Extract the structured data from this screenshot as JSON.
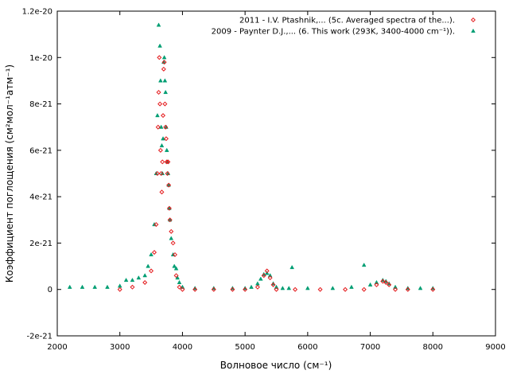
{
  "chart_data": {
    "type": "scatter",
    "title": "",
    "xlabel": "Волновое число (см⁻¹)",
    "ylabel": "Коэффициент поглощения (см²мол⁻¹атм⁻¹)",
    "xlim": [
      2000,
      9000
    ],
    "ylim": [
      -2e-21,
      1.2e-20
    ],
    "x_ticks": [
      2000,
      3000,
      4000,
      5000,
      6000,
      7000,
      8000,
      9000
    ],
    "x_tick_labels": [
      "2000",
      "3000",
      "4000",
      "5000",
      "6000",
      "7000",
      "8000",
      "9000"
    ],
    "y_ticks": [
      -2e-21,
      0,
      2e-21,
      4e-21,
      6e-21,
      8e-21,
      1e-20,
      1.2e-20
    ],
    "y_tick_labels": [
      "-2e-21",
      "0",
      "2e-21",
      "4e-21",
      "6e-21",
      "8e-21",
      "1e-20",
      "1.2e-20"
    ],
    "grid": false,
    "legend_position": "top-right",
    "colors": {
      "series1": "#e41a1c",
      "series2": "#009e73"
    },
    "series": [
      {
        "name": "2011 - I.V. Ptashnik,... (5c. Averaged spectra of the...).",
        "marker": "diamond",
        "x": [
          3000,
          3200,
          3400,
          3500,
          3550,
          3580,
          3600,
          3610,
          3620,
          3630,
          3640,
          3650,
          3660,
          3670,
          3680,
          3690,
          3700,
          3710,
          3720,
          3730,
          3740,
          3750,
          3760,
          3770,
          3780,
          3790,
          3800,
          3820,
          3850,
          3880,
          3900,
          3950,
          4000,
          4200,
          4500,
          4800,
          5000,
          5200,
          5300,
          5350,
          5400,
          5450,
          5500,
          5800,
          6200,
          6600,
          6900,
          7100,
          7200,
          7250,
          7300,
          7400,
          7600,
          8000
        ],
        "y": [
          0,
          1e-22,
          3e-22,
          8e-22,
          1.6e-21,
          2.8e-21,
          5e-21,
          7e-21,
          8.5e-21,
          1e-20,
          8e-21,
          6e-21,
          5e-21,
          4.2e-21,
          5.5e-21,
          7.5e-21,
          9.5e-21,
          9.8e-21,
          8e-21,
          7e-21,
          6.5e-21,
          5.5e-21,
          5e-21,
          5.5e-21,
          4.5e-21,
          3.5e-21,
          3e-21,
          2.5e-21,
          2e-21,
          1.5e-21,
          6e-22,
          1e-22,
          0,
          0,
          0,
          0,
          0,
          1e-22,
          6e-22,
          8e-22,
          5e-22,
          2e-22,
          0,
          0,
          0,
          0,
          0,
          2e-22,
          3.5e-22,
          3e-22,
          2e-22,
          0,
          0,
          0
        ]
      },
      {
        "name": "2009 - Paynter D.J.,... (6.  This work (293K, 3400-4000 cm⁻¹)).",
        "marker": "triangle",
        "x": [
          2200,
          2400,
          2600,
          2800,
          3000,
          3100,
          3200,
          3300,
          3400,
          3450,
          3500,
          3550,
          3580,
          3600,
          3620,
          3640,
          3650,
          3660,
          3670,
          3680,
          3690,
          3700,
          3710,
          3720,
          3730,
          3740,
          3750,
          3760,
          3770,
          3780,
          3790,
          3800,
          3820,
          3850,
          3870,
          3900,
          3920,
          3950,
          4000,
          4200,
          4500,
          4800,
          5000,
          5100,
          5200,
          5250,
          5300,
          5350,
          5400,
          5450,
          5500,
          5600,
          5700,
          5750,
          6000,
          6400,
          6700,
          6900,
          7000,
          7100,
          7200,
          7250,
          7300,
          7400,
          7600,
          7800,
          8000
        ],
        "y": [
          1e-22,
          1e-22,
          1e-22,
          1e-22,
          1.5e-22,
          4e-22,
          4e-22,
          5e-22,
          6e-22,
          1e-21,
          1.5e-21,
          2.8e-21,
          5e-21,
          7.5e-21,
          1.14e-20,
          1.05e-20,
          9e-21,
          7e-21,
          6.2e-21,
          5e-21,
          6.5e-21,
          9.8e-21,
          1e-20,
          9e-21,
          8.5e-21,
          7e-21,
          6e-21,
          5.5e-21,
          5e-21,
          4.5e-21,
          3.5e-21,
          3e-21,
          2.2e-21,
          1.5e-21,
          1e-21,
          9e-22,
          5e-22,
          3e-22,
          1e-22,
          5e-23,
          5e-23,
          5e-23,
          5e-23,
          1e-22,
          2.5e-22,
          4.5e-22,
          6.5e-22,
          7e-22,
          6e-22,
          2.5e-22,
          1e-22,
          5e-23,
          5e-23,
          9.5e-22,
          5e-23,
          5e-23,
          1e-22,
          1.05e-21,
          2e-22,
          3e-22,
          4e-22,
          3.5e-22,
          2.5e-22,
          1e-22,
          5e-23,
          5e-23,
          5e-23
        ]
      }
    ]
  }
}
